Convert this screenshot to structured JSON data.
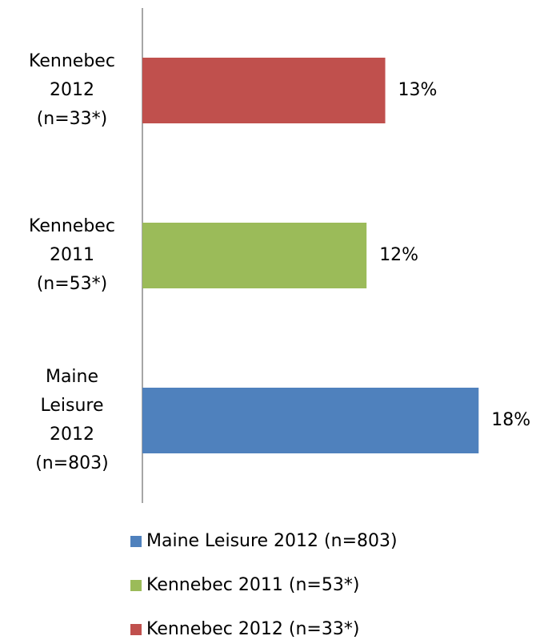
{
  "chart_data": {
    "type": "bar",
    "orientation": "horizontal",
    "series": [
      {
        "name": "Maine Leisure 2012 (n=803)",
        "color": "#4f81bd",
        "values": [
          18
        ],
        "value_labels": [
          "18%"
        ]
      },
      {
        "name": "Kennebec 2011 (n=53*)",
        "color": "#9bbb59",
        "values": [
          12
        ],
        "value_labels": [
          "12%"
        ]
      },
      {
        "name": "Kennebec 2012 (n=33*)",
        "color": "#c0504d",
        "values": [
          13
        ],
        "value_labels": [
          "13%"
        ]
      }
    ],
    "xlim": [
      0,
      20
    ],
    "legend": "bottom"
  }
}
